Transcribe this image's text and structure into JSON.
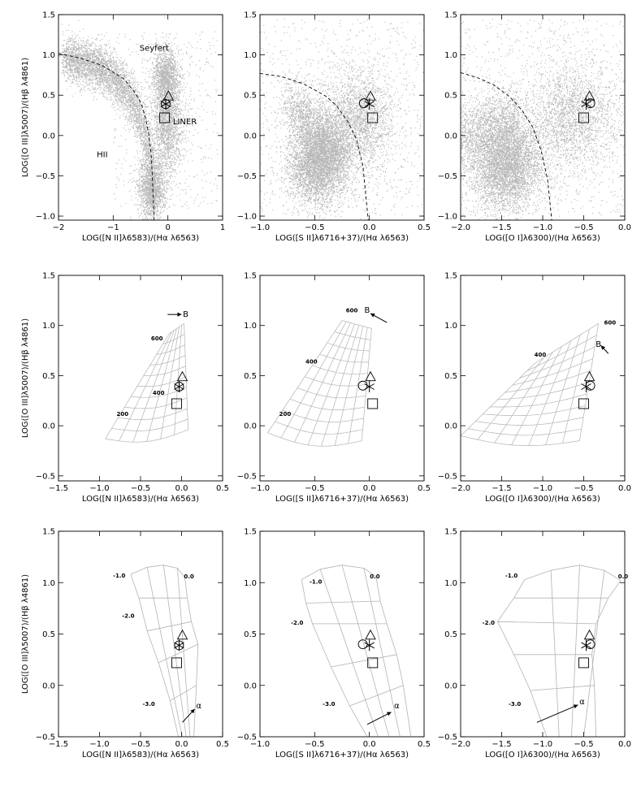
{
  "figure": {
    "background": "#ffffff",
    "point_color": "#b7b7b7",
    "grid_color": "#b3b3b3",
    "line_color": "#000000"
  },
  "chart_data": [
    {
      "type": "scatter",
      "row": 0,
      "col": 0,
      "xlim": [
        -2,
        1
      ],
      "ylim": [
        -1.05,
        1.5
      ],
      "xticks": [
        -2,
        -1,
        0,
        1
      ],
      "yticks": [
        -1.0,
        -0.5,
        0.0,
        0.5,
        1.0,
        1.5
      ],
      "xlabel": "LOG([N II]λ6583)/(Hα λ6563)",
      "ylabel": "LOG([O III]λ5007)/(Hβ λ4861)",
      "density": "bpt_nii",
      "demarcation": {
        "style": "dashed",
        "x": [
          -2.0,
          -1.6,
          -1.2,
          -0.8,
          -0.6,
          -0.5,
          -0.45,
          -0.4,
          -0.35,
          -0.3,
          -0.25
        ],
        "y": [
          1.02,
          0.96,
          0.87,
          0.7,
          0.53,
          0.41,
          0.32,
          0.19,
          0.02,
          -0.28,
          -1.05
        ]
      },
      "annotations": [
        {
          "text": "Seyfert",
          "x": -0.25,
          "y": 1.05
        },
        {
          "text": "LINER",
          "x": 0.31,
          "y": 0.14
        },
        {
          "text": "HII",
          "x": -1.2,
          "y": -0.27
        }
      ],
      "markers": [
        {
          "symbol": "triangle",
          "x": 0.01,
          "y": 0.49
        },
        {
          "symbol": "circle",
          "x": -0.04,
          "y": 0.39
        },
        {
          "symbol": "asterisk",
          "x": -0.04,
          "y": 0.39
        },
        {
          "symbol": "square",
          "x": -0.06,
          "y": 0.22
        }
      ]
    },
    {
      "type": "scatter",
      "row": 0,
      "col": 1,
      "xlim": [
        -1.0,
        0.5
      ],
      "ylim": [
        -1.05,
        1.5
      ],
      "xticks": [
        -1.0,
        -0.5,
        0.0,
        0.5
      ],
      "yticks": [
        -1.0,
        -0.5,
        0.0,
        0.5,
        1.0,
        1.5
      ],
      "xlabel": "LOG([S II]λ6716+37)/(Hα λ6563)",
      "ylabel": "",
      "density": "bpt_sii",
      "demarcation": {
        "style": "dashed",
        "x": [
          -1.0,
          -0.8,
          -0.6,
          -0.4,
          -0.3,
          -0.2,
          -0.12,
          -0.06,
          -0.01
        ],
        "y": [
          0.77,
          0.73,
          0.64,
          0.49,
          0.37,
          0.18,
          -0.04,
          -0.37,
          -1.05
        ]
      },
      "annotations": [],
      "markers": [
        {
          "symbol": "triangle",
          "x": 0.01,
          "y": 0.49
        },
        {
          "symbol": "circle",
          "x": -0.05,
          "y": 0.4
        },
        {
          "symbol": "asterisk",
          "x": 0.0,
          "y": 0.39
        },
        {
          "symbol": "square",
          "x": 0.03,
          "y": 0.22
        }
      ]
    },
    {
      "type": "scatter",
      "row": 0,
      "col": 2,
      "xlim": [
        -2.0,
        0.0
      ],
      "ylim": [
        -1.05,
        1.5
      ],
      "xticks": [
        -2.0,
        -1.5,
        -1.0,
        -0.5,
        0.0
      ],
      "yticks": [
        -1.0,
        -0.5,
        0.0,
        0.5,
        1.0,
        1.5
      ],
      "xlabel": "LOG([O I]λ6300)/(Hα λ6563)",
      "ylabel": "",
      "density": "bpt_oi",
      "demarcation": {
        "style": "dashed",
        "x": [
          -2.0,
          -1.8,
          -1.6,
          -1.4,
          -1.25,
          -1.12,
          -1.02,
          -0.94,
          -0.89
        ],
        "y": [
          0.78,
          0.72,
          0.63,
          0.48,
          0.31,
          0.1,
          -0.18,
          -0.55,
          -1.05
        ]
      },
      "annotations": [],
      "markers": [
        {
          "symbol": "triangle",
          "x": -0.43,
          "y": 0.49
        },
        {
          "symbol": "circle",
          "x": -0.42,
          "y": 0.4
        },
        {
          "symbol": "asterisk",
          "x": -0.47,
          "y": 0.39
        },
        {
          "symbol": "square",
          "x": -0.5,
          "y": 0.22
        }
      ]
    },
    {
      "type": "line",
      "row": 1,
      "col": 0,
      "xlim": [
        -1.5,
        0.5
      ],
      "ylim": [
        -0.55,
        1.5
      ],
      "xticks": [
        -1.5,
        -1.0,
        -0.5,
        0.0,
        0.5
      ],
      "yticks": [
        -0.5,
        0.0,
        0.5,
        1.0,
        1.5
      ],
      "xlabel": "LOG([N II]λ6583)/(Hα λ6563)",
      "ylabel": "LOG([O III]λ5007)/(Hβ λ4861)",
      "grid": {
        "corners": [
          [
            -0.93,
            -0.13
          ],
          [
            0.08,
            -0.04
          ],
          [
            -0.15,
            0.92
          ],
          [
            0.03,
            1.02
          ]
        ],
        "rows": 10,
        "cols": 6,
        "bulge": 0.12
      },
      "labels": [
        {
          "text": "600",
          "x": -0.3,
          "y": 0.85
        },
        {
          "text": "400",
          "x": -0.28,
          "y": 0.31
        },
        {
          "text": "200",
          "x": -0.72,
          "y": 0.1
        }
      ],
      "arrow": {
        "x1": -0.17,
        "y1": 1.11,
        "x2": 0.0,
        "y2": 1.11,
        "label": "B",
        "lx": 0.05,
        "ly": 1.11
      },
      "markers": [
        {
          "symbol": "triangle",
          "x": 0.01,
          "y": 0.49
        },
        {
          "symbol": "circle",
          "x": -0.03,
          "y": 0.39
        },
        {
          "symbol": "asterisk",
          "x": -0.03,
          "y": 0.39
        },
        {
          "symbol": "square",
          "x": -0.06,
          "y": 0.22
        }
      ]
    },
    {
      "type": "line",
      "row": 1,
      "col": 1,
      "xlim": [
        -1.0,
        0.5
      ],
      "ylim": [
        -0.55,
        1.5
      ],
      "xticks": [
        -1.0,
        -0.5,
        0.0,
        0.5
      ],
      "yticks": [
        -0.5,
        0.0,
        0.5,
        1.0,
        1.5
      ],
      "xlabel": "LOG([S II]λ6716+37)/(Hα λ6563)",
      "ylabel": "",
      "grid": {
        "corners": [
          [
            -0.93,
            -0.07
          ],
          [
            -0.07,
            -0.15
          ],
          [
            -0.25,
            1.05
          ],
          [
            0.02,
            0.97
          ]
        ],
        "rows": 10,
        "cols": 7,
        "bulge": 0.15
      },
      "labels": [
        {
          "text": "600",
          "x": -0.16,
          "y": 1.13
        },
        {
          "text": "400",
          "x": -0.53,
          "y": 0.62
        },
        {
          "text": "200",
          "x": -0.77,
          "y": 0.1
        }
      ],
      "arrow": {
        "x1": 0.16,
        "y1": 1.03,
        "x2": 0.01,
        "y2": 1.12,
        "label": "B",
        "lx": -0.02,
        "ly": 1.15
      },
      "markers": [
        {
          "symbol": "triangle",
          "x": 0.01,
          "y": 0.49
        },
        {
          "symbol": "circle",
          "x": -0.06,
          "y": 0.4
        },
        {
          "symbol": "asterisk",
          "x": 0.0,
          "y": 0.39
        },
        {
          "symbol": "square",
          "x": 0.03,
          "y": 0.22
        }
      ]
    },
    {
      "type": "line",
      "row": 1,
      "col": 2,
      "xlim": [
        -2.0,
        0.0
      ],
      "ylim": [
        -0.55,
        1.5
      ],
      "xticks": [
        -2.0,
        -1.5,
        -1.0,
        -0.5,
        0.0
      ],
      "yticks": [
        -0.5,
        0.0,
        0.5,
        1.0,
        1.5
      ],
      "xlabel": "LOG([O I]λ6300)/(Hα λ6563)",
      "ylabel": "",
      "grid": {
        "corners": [
          [
            -2.0,
            -0.1
          ],
          [
            -0.55,
            -0.15
          ],
          [
            -1.1,
            0.62
          ],
          [
            -0.32,
            1.02
          ]
        ],
        "rows": 10,
        "cols": 7,
        "bulge": 0.12
      },
      "labels": [
        {
          "text": "600",
          "x": -0.18,
          "y": 1.01
        },
        {
          "text": "400",
          "x": -1.03,
          "y": 0.69
        }
      ],
      "arrow": {
        "x1": -0.2,
        "y1": 0.72,
        "x2": -0.29,
        "y2": 0.8,
        "label": "B",
        "lx": -0.32,
        "ly": 0.81
      },
      "markers": [
        {
          "symbol": "triangle",
          "x": -0.43,
          "y": 0.49
        },
        {
          "symbol": "circle",
          "x": -0.42,
          "y": 0.4
        },
        {
          "symbol": "asterisk",
          "x": -0.47,
          "y": 0.39
        },
        {
          "symbol": "square",
          "x": -0.5,
          "y": 0.22
        }
      ]
    },
    {
      "type": "line",
      "row": 2,
      "col": 0,
      "xlim": [
        -1.5,
        0.5
      ],
      "ylim": [
        -0.5,
        1.5
      ],
      "xticks": [
        -1.5,
        -1.0,
        -0.5,
        0.0,
        0.5
      ],
      "yticks": [
        -0.5,
        0.0,
        0.5,
        1.0,
        1.5
      ],
      "xlabel": "LOG([N II]λ6583)/(Hα λ6563)",
      "ylabel": "LOG([O III]λ5007)/(Hβ λ4861)",
      "model": {
        "top": [
          [
            -0.62,
            1.08
          ],
          [
            -0.42,
            1.15
          ],
          [
            -0.22,
            1.17
          ],
          [
            -0.05,
            1.14
          ],
          [
            0.04,
            1.05
          ]
        ],
        "left": [
          [
            -0.62,
            1.08
          ],
          [
            -0.52,
            0.85
          ],
          [
            -0.42,
            0.53
          ],
          [
            -0.28,
            0.22
          ],
          [
            -0.14,
            -0.15
          ],
          [
            -0.04,
            -0.5
          ]
        ],
        "right": [
          [
            0.04,
            1.05
          ],
          [
            0.07,
            0.85
          ],
          [
            0.12,
            0.62
          ],
          [
            0.2,
            0.4
          ],
          [
            0.18,
            0.0
          ],
          [
            0.15,
            -0.5
          ]
        ]
      },
      "labels": [
        {
          "text": "-1.0",
          "x": -0.76,
          "y": 1.05
        },
        {
          "text": "0.0",
          "x": 0.09,
          "y": 1.04
        },
        {
          "text": "-2.0",
          "x": -0.65,
          "y": 0.66
        },
        {
          "text": "-3.0",
          "x": -0.4,
          "y": -0.2
        }
      ],
      "arrow": {
        "x1": 0.01,
        "y1": -0.36,
        "x2": 0.16,
        "y2": -0.23,
        "label": "α",
        "lx": 0.21,
        "ly": -0.2
      },
      "markers": [
        {
          "symbol": "triangle",
          "x": 0.01,
          "y": 0.49
        },
        {
          "symbol": "circle",
          "x": -0.03,
          "y": 0.39
        },
        {
          "symbol": "asterisk",
          "x": -0.03,
          "y": 0.39
        },
        {
          "symbol": "square",
          "x": -0.06,
          "y": 0.22
        }
      ]
    },
    {
      "type": "line",
      "row": 2,
      "col": 1,
      "xlim": [
        -1.0,
        0.5
      ],
      "ylim": [
        -0.5,
        1.5
      ],
      "xticks": [
        -1.0,
        -0.5,
        0.0,
        0.5
      ],
      "yticks": [
        -0.5,
        0.0,
        0.5,
        1.0,
        1.5
      ],
      "xlabel": "LOG([S II]λ6716+37)/(Hα λ6563)",
      "ylabel": "",
      "model": {
        "top": [
          [
            -0.62,
            1.03
          ],
          [
            -0.45,
            1.13
          ],
          [
            -0.25,
            1.17
          ],
          [
            -0.05,
            1.14
          ],
          [
            0.06,
            1.06
          ]
        ],
        "left": [
          [
            -0.62,
            1.03
          ],
          [
            -0.58,
            0.8
          ],
          [
            -0.52,
            0.6
          ],
          [
            -0.35,
            0.18
          ],
          [
            -0.18,
            -0.2
          ],
          [
            -0.02,
            -0.5
          ]
        ],
        "right": [
          [
            0.06,
            1.06
          ],
          [
            0.1,
            0.82
          ],
          [
            0.16,
            0.6
          ],
          [
            0.25,
            0.3
          ],
          [
            0.31,
            0.0
          ],
          [
            0.38,
            -0.5
          ]
        ]
      },
      "labels": [
        {
          "text": "-1.0",
          "x": -0.49,
          "y": 0.99
        },
        {
          "text": "0.0",
          "x": 0.05,
          "y": 1.04
        },
        {
          "text": "-2.0",
          "x": -0.66,
          "y": 0.59
        },
        {
          "text": "-3.0",
          "x": -0.37,
          "y": -0.2
        }
      ],
      "arrow": {
        "x1": -0.02,
        "y1": -0.38,
        "x2": 0.2,
        "y2": -0.26,
        "label": "α",
        "lx": 0.25,
        "ly": -0.2
      },
      "markers": [
        {
          "symbol": "triangle",
          "x": 0.01,
          "y": 0.49
        },
        {
          "symbol": "circle",
          "x": -0.06,
          "y": 0.4
        },
        {
          "symbol": "asterisk",
          "x": 0.0,
          "y": 0.39
        },
        {
          "symbol": "square",
          "x": 0.03,
          "y": 0.22
        }
      ]
    },
    {
      "type": "line",
      "row": 2,
      "col": 2,
      "xlim": [
        -2.0,
        0.0
      ],
      "ylim": [
        -0.5,
        1.5
      ],
      "xticks": [
        -2.0,
        -1.5,
        -1.0,
        -0.5,
        0.0
      ],
      "yticks": [
        -0.5,
        0.0,
        0.5,
        1.0,
        1.5
      ],
      "xlabel": "LOG([O I]λ6300)/(Hα λ6563)",
      "ylabel": "",
      "model": {
        "top": [
          [
            -1.22,
            1.03
          ],
          [
            -0.9,
            1.12
          ],
          [
            -0.55,
            1.17
          ],
          [
            -0.25,
            1.12
          ],
          [
            -0.05,
            1.02
          ]
        ],
        "left": [
          [
            -1.22,
            1.03
          ],
          [
            -1.35,
            0.85
          ],
          [
            -1.55,
            0.62
          ],
          [
            -1.35,
            0.3
          ],
          [
            -1.15,
            -0.05
          ],
          [
            -0.95,
            -0.5
          ]
        ],
        "right": [
          [
            -0.05,
            1.02
          ],
          [
            -0.2,
            0.85
          ],
          [
            -0.35,
            0.6
          ],
          [
            -0.4,
            0.3
          ],
          [
            -0.37,
            0.0
          ],
          [
            -0.35,
            -0.5
          ]
        ]
      },
      "labels": [
        {
          "text": "-1.0",
          "x": -1.38,
          "y": 1.05
        },
        {
          "text": "0.0",
          "x": -0.02,
          "y": 1.04
        },
        {
          "text": "-2.0",
          "x": -1.66,
          "y": 0.59
        },
        {
          "text": "-3.0",
          "x": -1.34,
          "y": -0.2
        }
      ],
      "arrow": {
        "x1": -1.07,
        "y1": -0.36,
        "x2": -0.57,
        "y2": -0.19,
        "label": "α",
        "lx": -0.52,
        "ly": -0.16
      },
      "markers": [
        {
          "symbol": "triangle",
          "x": -0.43,
          "y": 0.49
        },
        {
          "symbol": "circle",
          "x": -0.42,
          "y": 0.4
        },
        {
          "symbol": "asterisk",
          "x": -0.47,
          "y": 0.39
        },
        {
          "symbol": "square",
          "x": -0.5,
          "y": 0.22
        }
      ]
    }
  ]
}
